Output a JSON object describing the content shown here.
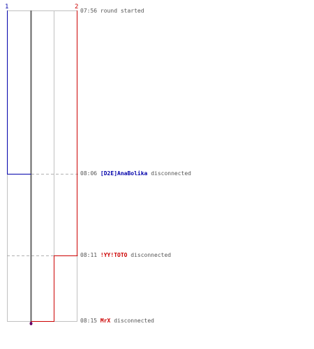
{
  "teams": [
    {
      "number": "1",
      "color": "#0000aa"
    },
    {
      "number": "2",
      "color": "#cc0000"
    }
  ],
  "events": [
    {
      "time": "07:56",
      "player": "",
      "player_color": "",
      "text": "round started"
    },
    {
      "time": "08:06",
      "player": "[D2E]AnaBolika",
      "player_color": "#0000aa",
      "text": "disconnected"
    },
    {
      "time": "08:11",
      "player": "!YY!TOTO",
      "player_color": "#cc0000",
      "text": "disconnected"
    },
    {
      "time": "08:15",
      "player": "MrX",
      "player_color": "#cc0000",
      "text": "disconnected"
    }
  ],
  "colors": {
    "team1": "#0000aa",
    "team2": "#cc0000",
    "center_line": "#666666",
    "grid": "#c0c0c0",
    "end_marker": "#660066"
  }
}
